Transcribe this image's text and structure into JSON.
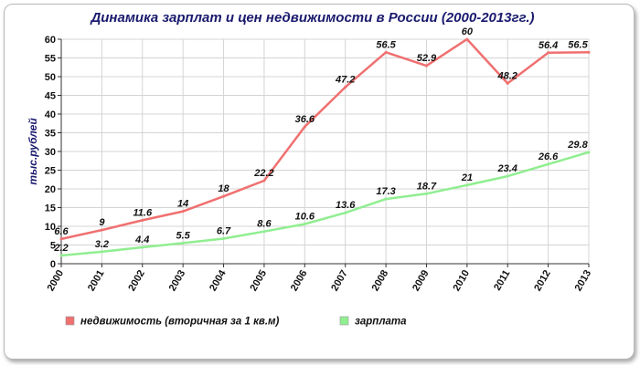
{
  "chart_data": {
    "type": "line",
    "title": "Динамика зарплат и цен недвижимости в России (2000-2013гг.)",
    "ylabel": "тыс.рублей",
    "xlabel": "",
    "x": [
      "2000",
      "2001",
      "2002",
      "2003",
      "2004",
      "2005",
      "2006",
      "2007",
      "2008",
      "2009",
      "2010",
      "2011",
      "2012",
      "2013"
    ],
    "ylim": [
      0,
      60
    ],
    "yticks": [
      0,
      5,
      10,
      15,
      20,
      25,
      30,
      35,
      40,
      45,
      50,
      55,
      60
    ],
    "grid": true,
    "legend_position": "bottom",
    "series": [
      {
        "name": "недвижимость (вторичная за 1 кв.м)",
        "color": "#f07070",
        "values": [
          6.6,
          9,
          11.6,
          14,
          18,
          22.2,
          36.6,
          47.2,
          56.5,
          52.9,
          60,
          48.2,
          56.4,
          56.5
        ],
        "labels": [
          "6.6",
          "9",
          "11.6",
          "14",
          "18",
          "22.2",
          "36.6",
          "47.2",
          "56.5",
          "52.9",
          "60",
          "48.2",
          "56.4",
          "56.5"
        ]
      },
      {
        "name": "зарплата",
        "color": "#90ee90",
        "values": [
          2.2,
          3.2,
          4.4,
          5.5,
          6.7,
          8.6,
          10.6,
          13.6,
          17.3,
          18.7,
          21,
          23.4,
          26.6,
          29.8
        ],
        "labels": [
          "2.2",
          "3.2",
          "4.4",
          "5.5",
          "6.7",
          "8.6",
          "10.6",
          "13.6",
          "17.3",
          "18.7",
          "21",
          "23.4",
          "26.6",
          "29.8"
        ]
      }
    ]
  }
}
